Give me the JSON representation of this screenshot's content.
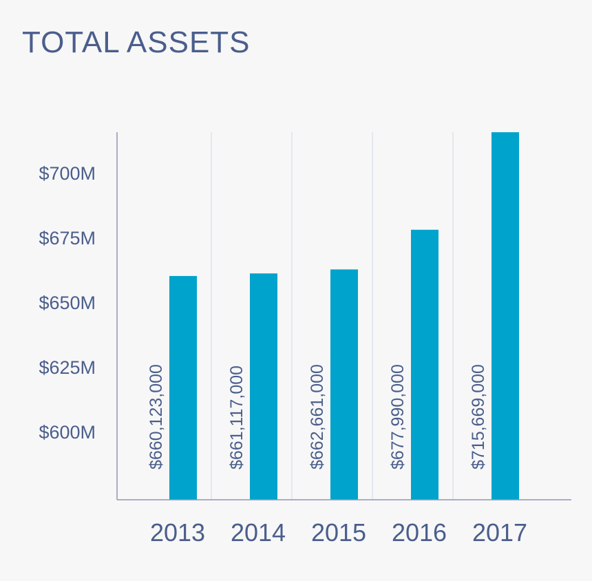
{
  "chart_data": {
    "type": "bar",
    "title": "TOTAL ASSETS",
    "xlabel": "",
    "ylabel": "",
    "categories": [
      "2013",
      "2014",
      "2015",
      "2016",
      "2017"
    ],
    "values": [
      660123000,
      661117000,
      662661000,
      677990000,
      715669000
    ],
    "data_labels": [
      "$660,123,000",
      "$661,117,000",
      "$662,661,000",
      "$677,990,000",
      "$715,669,000"
    ],
    "y_ticks": [
      600000000,
      625000000,
      650000000,
      675000000,
      700000000
    ],
    "y_tick_labels": [
      "$600M",
      "$625M",
      "$650M",
      "$675M",
      "$700M"
    ],
    "legend": "none",
    "grid": "vertical category separators",
    "colors": {
      "bar": "#00a3cc",
      "text": "#4a5e8c",
      "axis": "#8d96b4",
      "separator": "#cdd9e4",
      "background": "#f7f7f7"
    }
  }
}
